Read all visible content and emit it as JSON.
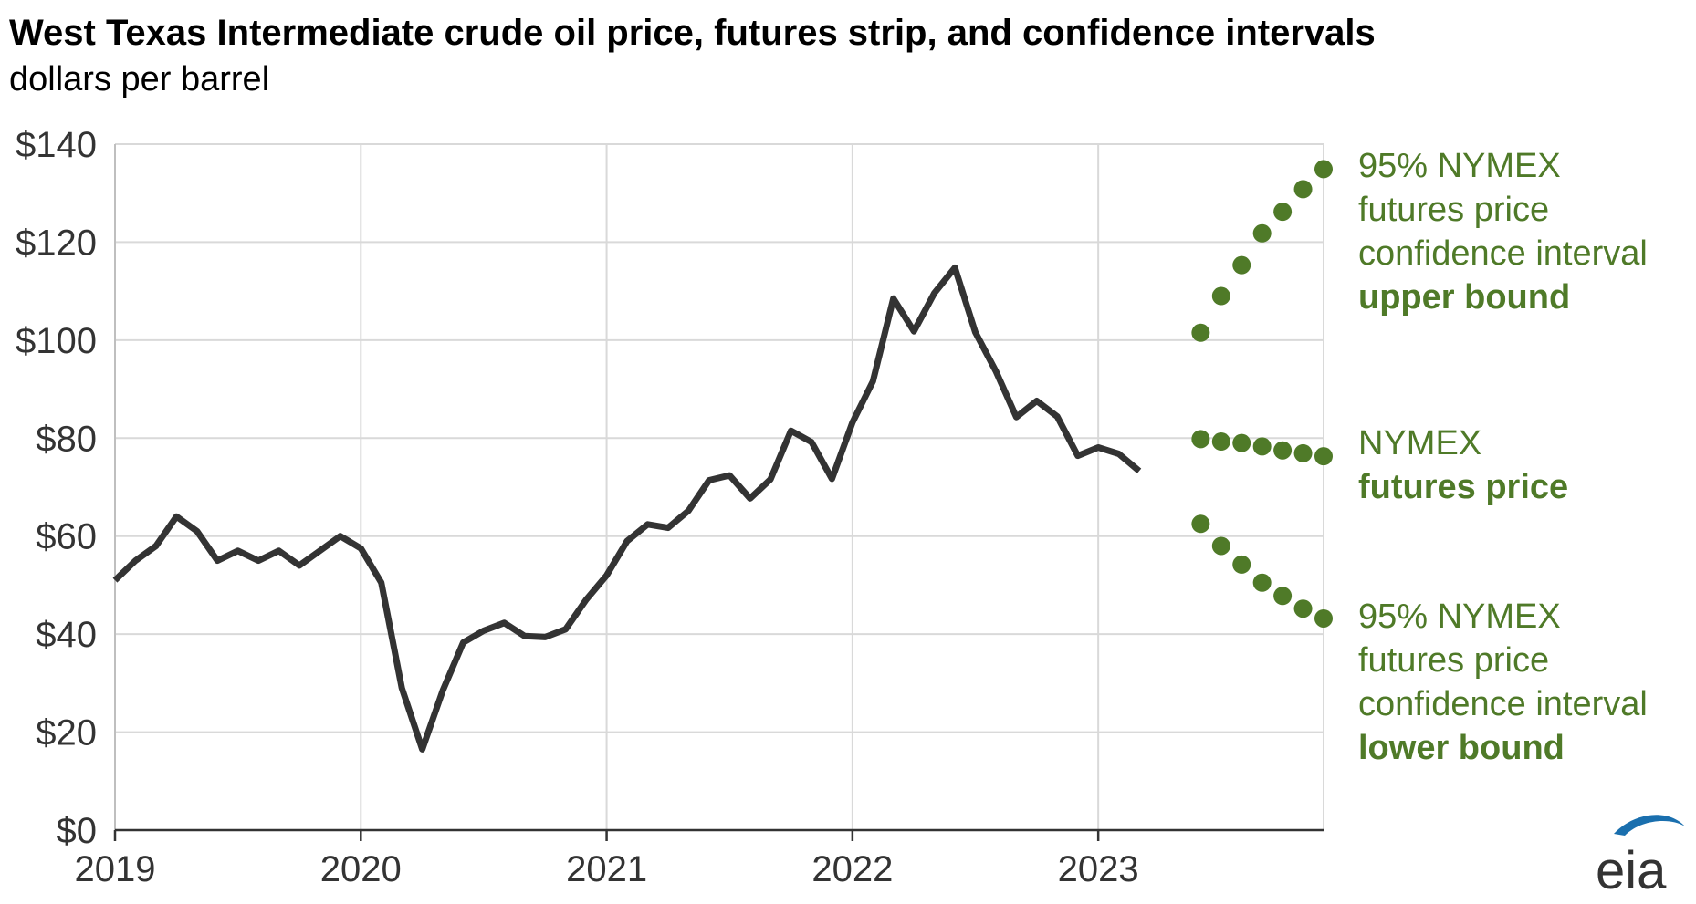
{
  "chart_data": {
    "type": "line",
    "title": "West Texas Intermediate crude oil price, futures strip, and confidence intervals",
    "subtitle": "dollars per barrel",
    "x_ticks": [
      "2019",
      "2020",
      "2021",
      "2022",
      "2023"
    ],
    "y_tick_labels": [
      "$0",
      "$20",
      "$40",
      "$60",
      "$80",
      "$100",
      "$120",
      "$140"
    ],
    "ylim": [
      0,
      140
    ],
    "xlim": [
      "2019-01",
      "2023-12"
    ],
    "grid": true,
    "series": [
      {
        "color": "#333333",
        "style": "line",
        "x": [
          "2019-01",
          "2019-02",
          "2019-03",
          "2019-04",
          "2019-05",
          "2019-06",
          "2019-07",
          "2019-08",
          "2019-09",
          "2019-10",
          "2019-11",
          "2019-12",
          "2020-01",
          "2020-02",
          "2020-03",
          "2020-04",
          "2020-05",
          "2020-06",
          "2020-07",
          "2020-08",
          "2020-09",
          "2020-10",
          "2020-11",
          "2020-12",
          "2021-01",
          "2021-02",
          "2021-03",
          "2021-04",
          "2021-05",
          "2021-06",
          "2021-07",
          "2021-08",
          "2021-09",
          "2021-10",
          "2021-11",
          "2021-12",
          "2022-01",
          "2022-02",
          "2022-03",
          "2022-04",
          "2022-05",
          "2022-06",
          "2022-07",
          "2022-08",
          "2022-09",
          "2022-10",
          "2022-11",
          "2022-12",
          "2023-01",
          "2023-02",
          "2023-03"
        ],
        "values": [
          51,
          55,
          58,
          64,
          61,
          55,
          57,
          55,
          57,
          54,
          57,
          60,
          57.5,
          50.5,
          29,
          16.5,
          28.5,
          38.3,
          40.7,
          42.3,
          39.6,
          39.4,
          41,
          47,
          52,
          59,
          62.4,
          61.7,
          65.2,
          71.4,
          72.4,
          67.7,
          71.6,
          81.5,
          79.2,
          71.7,
          83.2,
          91.6,
          108.5,
          101.8,
          109.6,
          114.8,
          101.6,
          93.7,
          84.3,
          87.6,
          84.4,
          76.4,
          78.1,
          76.8,
          73.3
        ]
      },
      {
        "name": "95% NYMEX futures price confidence interval upper bound",
        "color": "#4f7a28",
        "style": "dots",
        "x": [
          "2023-06",
          "2023-07",
          "2023-08",
          "2023-09",
          "2023-10",
          "2023-11",
          "2023-12"
        ],
        "values": [
          101.5,
          109,
          115.3,
          121.8,
          126.2,
          130.8,
          134.9
        ]
      },
      {
        "name": "NYMEX futures price",
        "color": "#4f7a28",
        "style": "dots",
        "x": [
          "2023-06",
          "2023-07",
          "2023-08",
          "2023-09",
          "2023-10",
          "2023-11",
          "2023-12"
        ],
        "values": [
          79.8,
          79.3,
          79,
          78.3,
          77.5,
          76.9,
          76.3
        ]
      },
      {
        "name": "95% NYMEX futures price confidence interval lower bound",
        "color": "#4f7a28",
        "style": "dots",
        "x": [
          "2023-06",
          "2023-07",
          "2023-08",
          "2023-09",
          "2023-10",
          "2023-11",
          "2023-12"
        ],
        "values": [
          62.5,
          58,
          54.2,
          50.5,
          47.8,
          45.2,
          43.2
        ]
      }
    ],
    "annotations": {
      "upper": {
        "line1": "95% NYMEX",
        "line2": "futures price",
        "line3": "confidence interval",
        "line4": "upper bound"
      },
      "mid": {
        "line1": "NYMEX",
        "line2": "futures price"
      },
      "lower": {
        "line1": "95% NYMEX",
        "line2": "futures price",
        "line3": "confidence interval",
        "line4": "lower bound"
      }
    }
  },
  "logo": {
    "text": "eia",
    "color": "#1a6fae",
    "text_color": "#333333"
  }
}
